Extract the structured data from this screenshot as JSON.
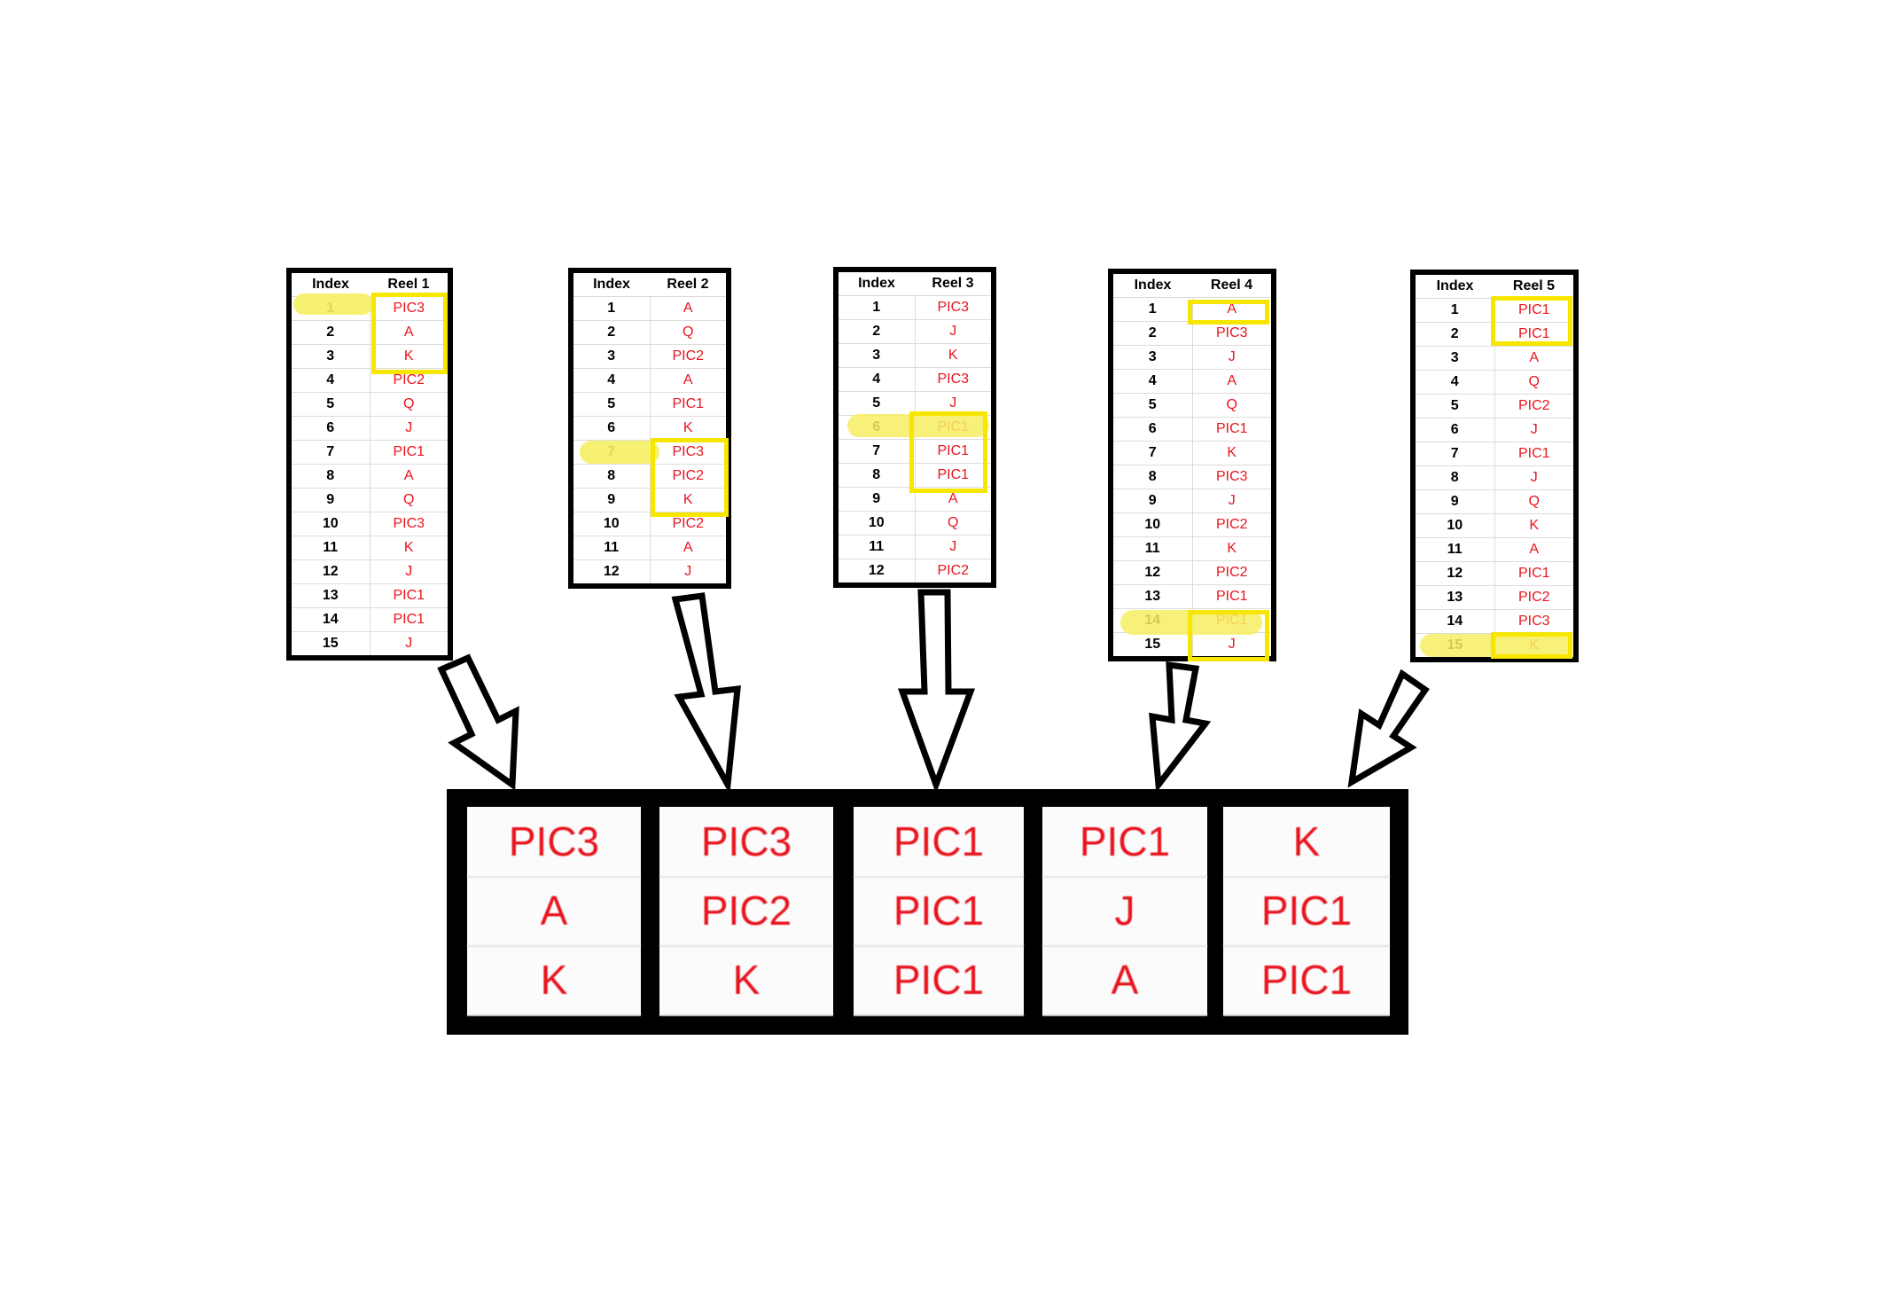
{
  "reels": [
    {
      "index_header": "Index",
      "reel_header": "Reel 1",
      "rows": [
        {
          "i": "1",
          "s": "PIC3"
        },
        {
          "i": "2",
          "s": "A"
        },
        {
          "i": "3",
          "s": "K"
        },
        {
          "i": "4",
          "s": "PIC2"
        },
        {
          "i": "5",
          "s": "Q"
        },
        {
          "i": "6",
          "s": "J"
        },
        {
          "i": "7",
          "s": "PIC1"
        },
        {
          "i": "8",
          "s": "A"
        },
        {
          "i": "9",
          "s": "Q"
        },
        {
          "i": "10",
          "s": "PIC3"
        },
        {
          "i": "11",
          "s": "K"
        },
        {
          "i": "12",
          "s": "J"
        },
        {
          "i": "13",
          "s": "PIC1"
        },
        {
          "i": "14",
          "s": "PIC1"
        },
        {
          "i": "15",
          "s": "J"
        }
      ]
    },
    {
      "index_header": "Index",
      "reel_header": "Reel 2",
      "rows": [
        {
          "i": "1",
          "s": "A"
        },
        {
          "i": "2",
          "s": "Q"
        },
        {
          "i": "3",
          "s": "PIC2"
        },
        {
          "i": "4",
          "s": "A"
        },
        {
          "i": "5",
          "s": "PIC1"
        },
        {
          "i": "6",
          "s": "K"
        },
        {
          "i": "7",
          "s": "PIC3"
        },
        {
          "i": "8",
          "s": "PIC2"
        },
        {
          "i": "9",
          "s": "K"
        },
        {
          "i": "10",
          "s": "PIC2"
        },
        {
          "i": "11",
          "s": "A"
        },
        {
          "i": "12",
          "s": "J"
        }
      ]
    },
    {
      "index_header": "Index",
      "reel_header": "Reel 3",
      "rows": [
        {
          "i": "1",
          "s": "PIC3"
        },
        {
          "i": "2",
          "s": "J"
        },
        {
          "i": "3",
          "s": "K"
        },
        {
          "i": "4",
          "s": "PIC3"
        },
        {
          "i": "5",
          "s": "J"
        },
        {
          "i": "6",
          "s": "PIC1"
        },
        {
          "i": "7",
          "s": "PIC1"
        },
        {
          "i": "8",
          "s": "PIC1"
        },
        {
          "i": "9",
          "s": "A"
        },
        {
          "i": "10",
          "s": "Q"
        },
        {
          "i": "11",
          "s": "J"
        },
        {
          "i": "12",
          "s": "PIC2"
        }
      ]
    },
    {
      "index_header": "Index",
      "reel_header": "Reel 4",
      "rows": [
        {
          "i": "1",
          "s": "A"
        },
        {
          "i": "2",
          "s": "PIC3"
        },
        {
          "i": "3",
          "s": "J"
        },
        {
          "i": "4",
          "s": "A"
        },
        {
          "i": "5",
          "s": "Q"
        },
        {
          "i": "6",
          "s": "PIC1"
        },
        {
          "i": "7",
          "s": "K"
        },
        {
          "i": "8",
          "s": "PIC3"
        },
        {
          "i": "9",
          "s": "J"
        },
        {
          "i": "10",
          "s": "PIC2"
        },
        {
          "i": "11",
          "s": "K"
        },
        {
          "i": "12",
          "s": "PIC2"
        },
        {
          "i": "13",
          "s": "PIC1"
        },
        {
          "i": "14",
          "s": "PIC1"
        },
        {
          "i": "15",
          "s": "J"
        }
      ]
    },
    {
      "index_header": "Index",
      "reel_header": "Reel 5",
      "rows": [
        {
          "i": "1",
          "s": "PIC1"
        },
        {
          "i": "2",
          "s": "PIC1"
        },
        {
          "i": "3",
          "s": "A"
        },
        {
          "i": "4",
          "s": "Q"
        },
        {
          "i": "5",
          "s": "PIC2"
        },
        {
          "i": "6",
          "s": "J"
        },
        {
          "i": "7",
          "s": "PIC1"
        },
        {
          "i": "8",
          "s": "J"
        },
        {
          "i": "9",
          "s": "Q"
        },
        {
          "i": "10",
          "s": "K"
        },
        {
          "i": "11",
          "s": "A"
        },
        {
          "i": "12",
          "s": "PIC1"
        },
        {
          "i": "13",
          "s": "PIC2"
        },
        {
          "i": "14",
          "s": "PIC3"
        },
        {
          "i": "15",
          "s": "K"
        }
      ]
    }
  ],
  "result_columns": [
    [
      "PIC3",
      "A",
      "K"
    ],
    [
      "PIC3",
      "PIC2",
      "K"
    ],
    [
      "PIC1",
      "PIC1",
      "PIC1"
    ],
    [
      "PIC1",
      "J",
      "A"
    ],
    [
      "K",
      "PIC1",
      "PIC1"
    ]
  ],
  "colors": {
    "symbol": "#e8141e",
    "highlight": "#f6ef62",
    "selection_box": "#f7e600",
    "border": "#000000"
  }
}
